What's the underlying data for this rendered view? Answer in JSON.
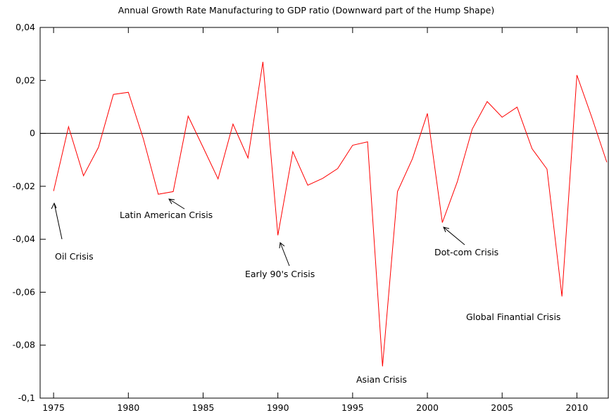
{
  "chart_data": {
    "type": "line",
    "title": "Annual Growth Rate Manufacturing to GDP ratio (Downward part of the Hump Shape)",
    "x": [
      1975,
      1976,
      1977,
      1978,
      1979,
      1980,
      1981,
      1982,
      1983,
      1984,
      1985,
      1986,
      1987,
      1988,
      1989,
      1990,
      1991,
      1992,
      1993,
      1994,
      1995,
      1996,
      1997,
      1998,
      1999,
      2000,
      2001,
      2002,
      2003,
      2004,
      2005,
      2006,
      2007,
      2008,
      2009,
      2010,
      2011,
      2012
    ],
    "series": [
      {
        "color": "#ff0000",
        "values": [
          -0.0218,
          0.0025,
          -0.016,
          -0.0053,
          0.0147,
          0.0155,
          -0.002,
          -0.023,
          -0.022,
          0.0065,
          -0.0053,
          -0.0172,
          0.0035,
          -0.0093,
          0.027,
          -0.0385,
          -0.0069,
          -0.0196,
          -0.017,
          -0.0133,
          -0.0045,
          -0.0032,
          -0.088,
          -0.022,
          -0.0096,
          0.0075,
          -0.0337,
          -0.0183,
          0.0016,
          0.012,
          0.0061,
          0.0099,
          -0.0058,
          -0.0135,
          -0.0616,
          0.022,
          0.006,
          -0.0109
        ]
      }
    ],
    "xlim": [
      1974.1,
      2012.1
    ],
    "xticks": [
      1975,
      1980,
      1985,
      1990,
      1995,
      2000,
      2005,
      2010
    ],
    "ylim": [
      -0.1,
      0.04
    ],
    "yticks": [
      {
        "value": -0.1,
        "label": "-0,1"
      },
      {
        "value": -0.08,
        "label": "-0,08"
      },
      {
        "value": -0.06,
        "label": "-0,06"
      },
      {
        "value": -0.04,
        "label": "-0,04"
      },
      {
        "value": -0.02,
        "label": "-0,02"
      },
      {
        "value": 0,
        "label": "0"
      },
      {
        "value": 0.02,
        "label": "0,02"
      },
      {
        "value": 0.04,
        "label": "0,04"
      }
    ],
    "zero_line": true,
    "annotations": [
      "Oil Crisis",
      "Latin American Crisis",
      "Early 90's Crisis",
      "Asian Crisis",
      "Dot-com Crisis",
      "Global Finantial Crisis"
    ]
  }
}
